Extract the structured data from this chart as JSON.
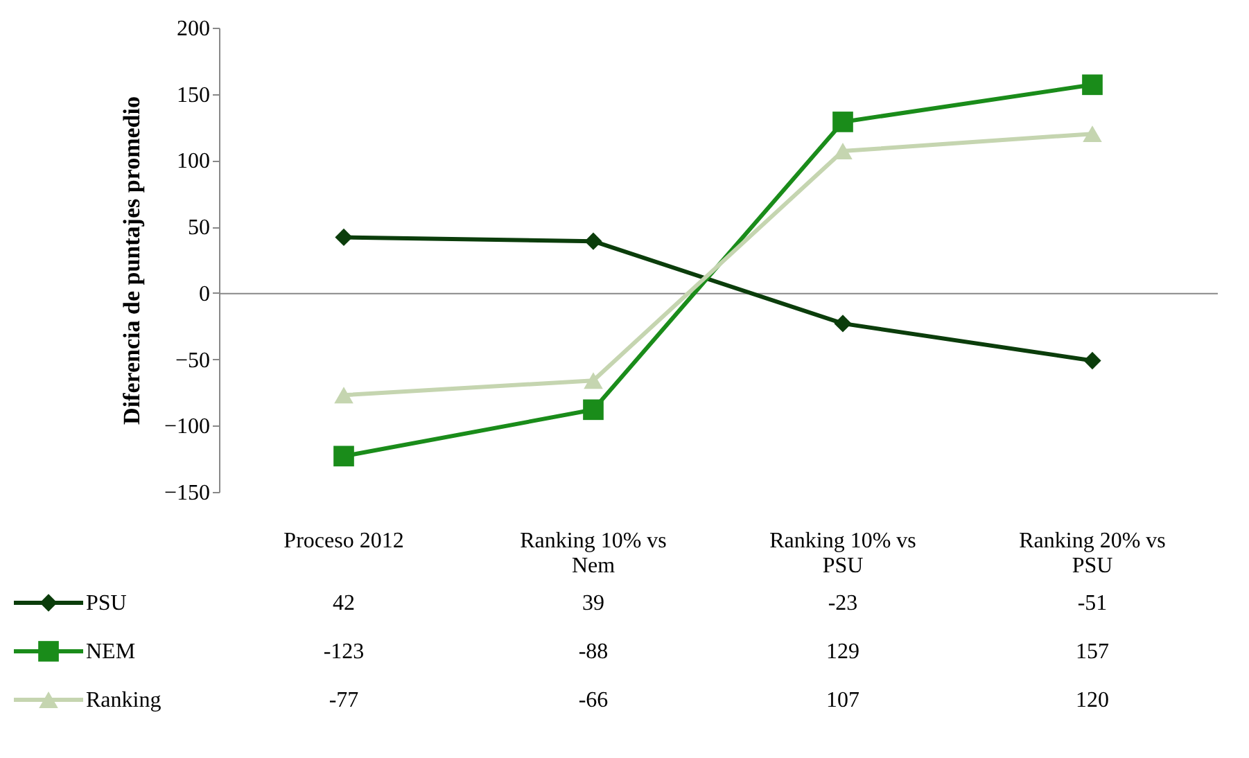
{
  "chart_data": {
    "type": "line",
    "ylabel": "Diferencia de puntajes promedio",
    "categories": [
      "Proceso 2012",
      "Ranking 10% vs Nem",
      "Ranking 10% vs PSU",
      "Ranking 20% vs PSU"
    ],
    "series": [
      {
        "name": "PSU",
        "color": "#0b3d0b",
        "marker": "diamond",
        "values": [
          42,
          39,
          -23,
          -51
        ]
      },
      {
        "name": "NEM",
        "color": "#1a8c1a",
        "marker": "square",
        "values": [
          -123,
          -88,
          129,
          157
        ]
      },
      {
        "name": "Ranking",
        "color": "#c5d5b0",
        "marker": "triangle",
        "values": [
          -77,
          -66,
          107,
          120
        ]
      }
    ],
    "ylim": [
      -150,
      200
    ],
    "yticks": [
      -150,
      -100,
      -50,
      0,
      50,
      100,
      150,
      200
    ],
    "legend": "bottom left",
    "data_labels": true,
    "line_style": "solid"
  }
}
